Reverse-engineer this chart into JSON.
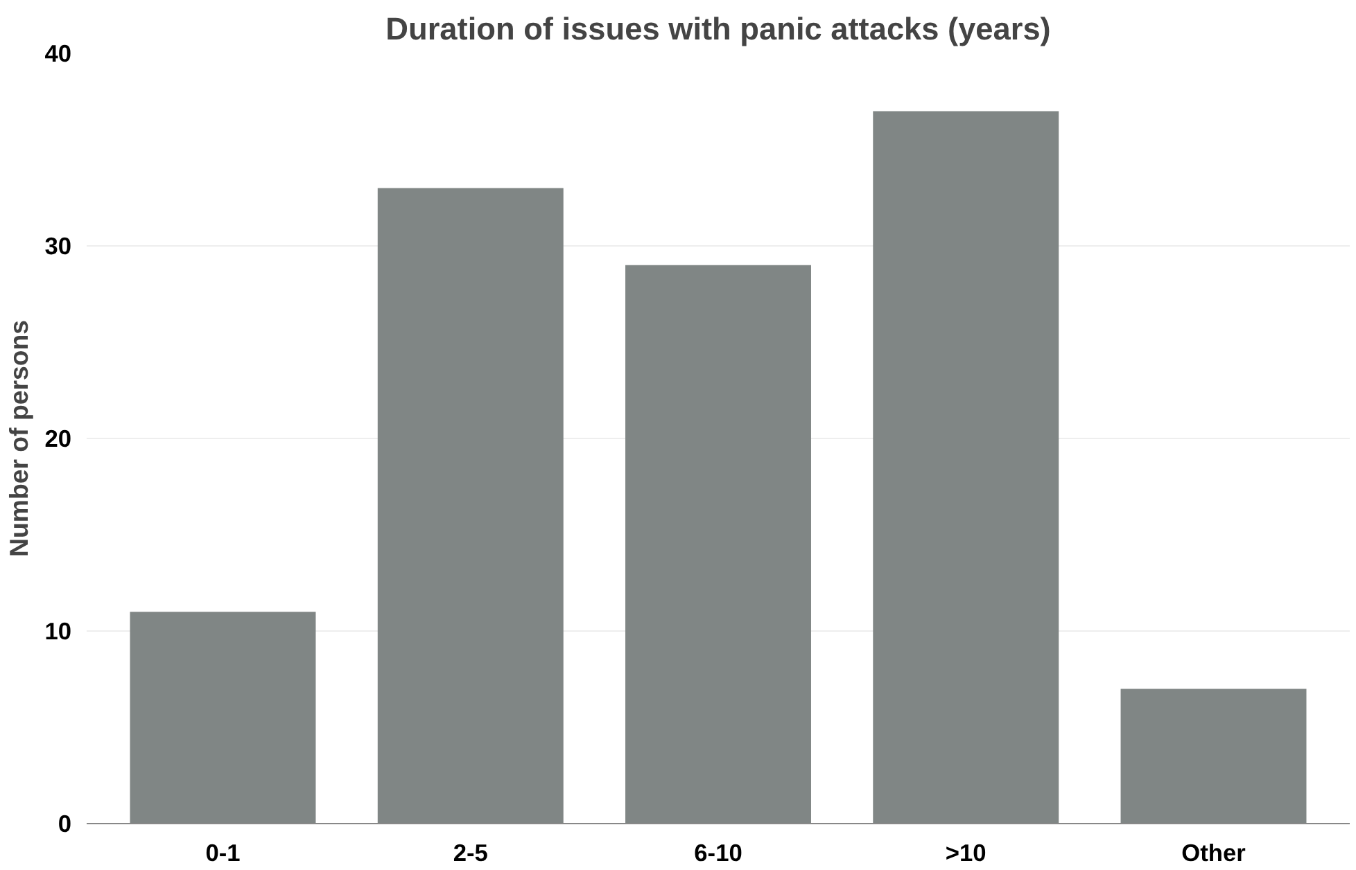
{
  "chart_data": {
    "type": "bar",
    "title": "Duration of issues with panic attacks (years)",
    "ylabel": "Number of persons",
    "categories": [
      "0-1",
      "2-5",
      "6-10",
      ">10",
      "Other"
    ],
    "values": [
      11,
      33,
      29,
      37,
      7
    ],
    "color": "#808685",
    "ylim": [
      0,
      40
    ],
    "yticks": [
      0,
      10,
      20,
      30,
      40
    ],
    "grid": "y"
  }
}
